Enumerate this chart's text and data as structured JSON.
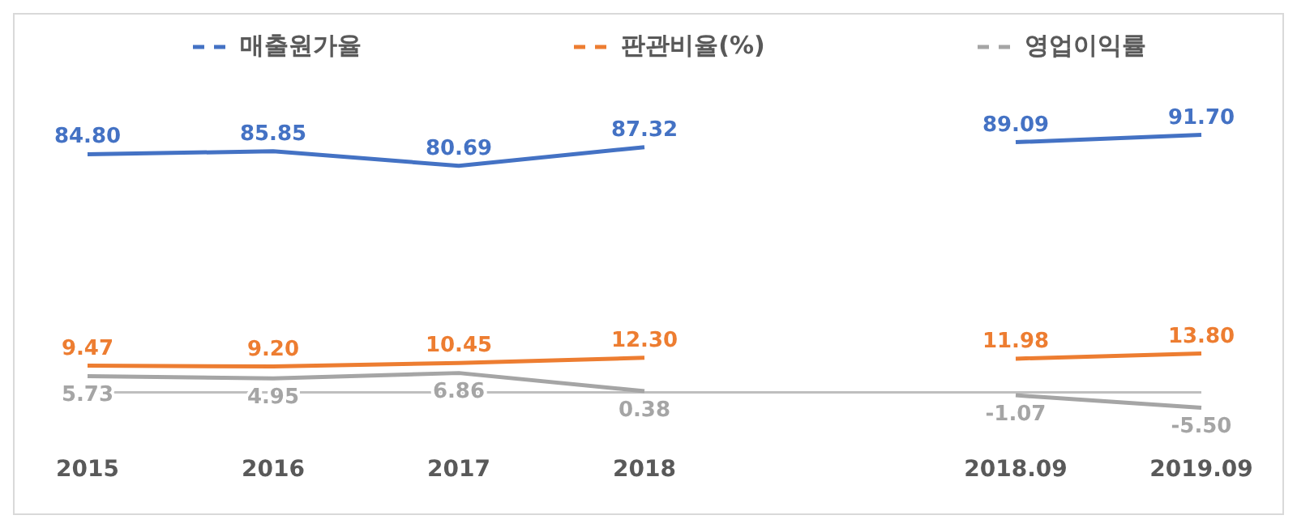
{
  "chart_data": {
    "type": "line",
    "categories": [
      "2015",
      "2016",
      "2017",
      "2018",
      null,
      "2018.09",
      "2019.09"
    ],
    "series": [
      {
        "name": "매출원가율",
        "color": "#4472c4",
        "values": [
          84.8,
          85.85,
          80.69,
          87.32,
          null,
          89.09,
          91.7
        ],
        "value_labels": [
          "84.80",
          "85.85",
          "80.69",
          "87.32",
          null,
          "89.09",
          "91.70"
        ]
      },
      {
        "name": "판관비율(%)",
        "color": "#ed7d31",
        "values": [
          9.47,
          9.2,
          10.45,
          12.3,
          null,
          11.98,
          13.8
        ],
        "value_labels": [
          "9.47",
          "9.20",
          "10.45",
          "12.30",
          null,
          "11.98",
          "13.80"
        ]
      },
      {
        "name": "영업이익률",
        "color": "#a5a5a5",
        "values": [
          5.73,
          4.95,
          6.86,
          0.38,
          null,
          -1.07,
          -5.5
        ],
        "value_labels": [
          "5.73",
          "4.95",
          "6.86",
          "0.38",
          null,
          "-1.07",
          "-5.50"
        ]
      }
    ],
    "legend": "top",
    "marker": "none",
    "line_style": "solid",
    "ref_lines": [
      {
        "axis": "y",
        "value": 0,
        "color": "#bfbfbf"
      }
    ]
  }
}
